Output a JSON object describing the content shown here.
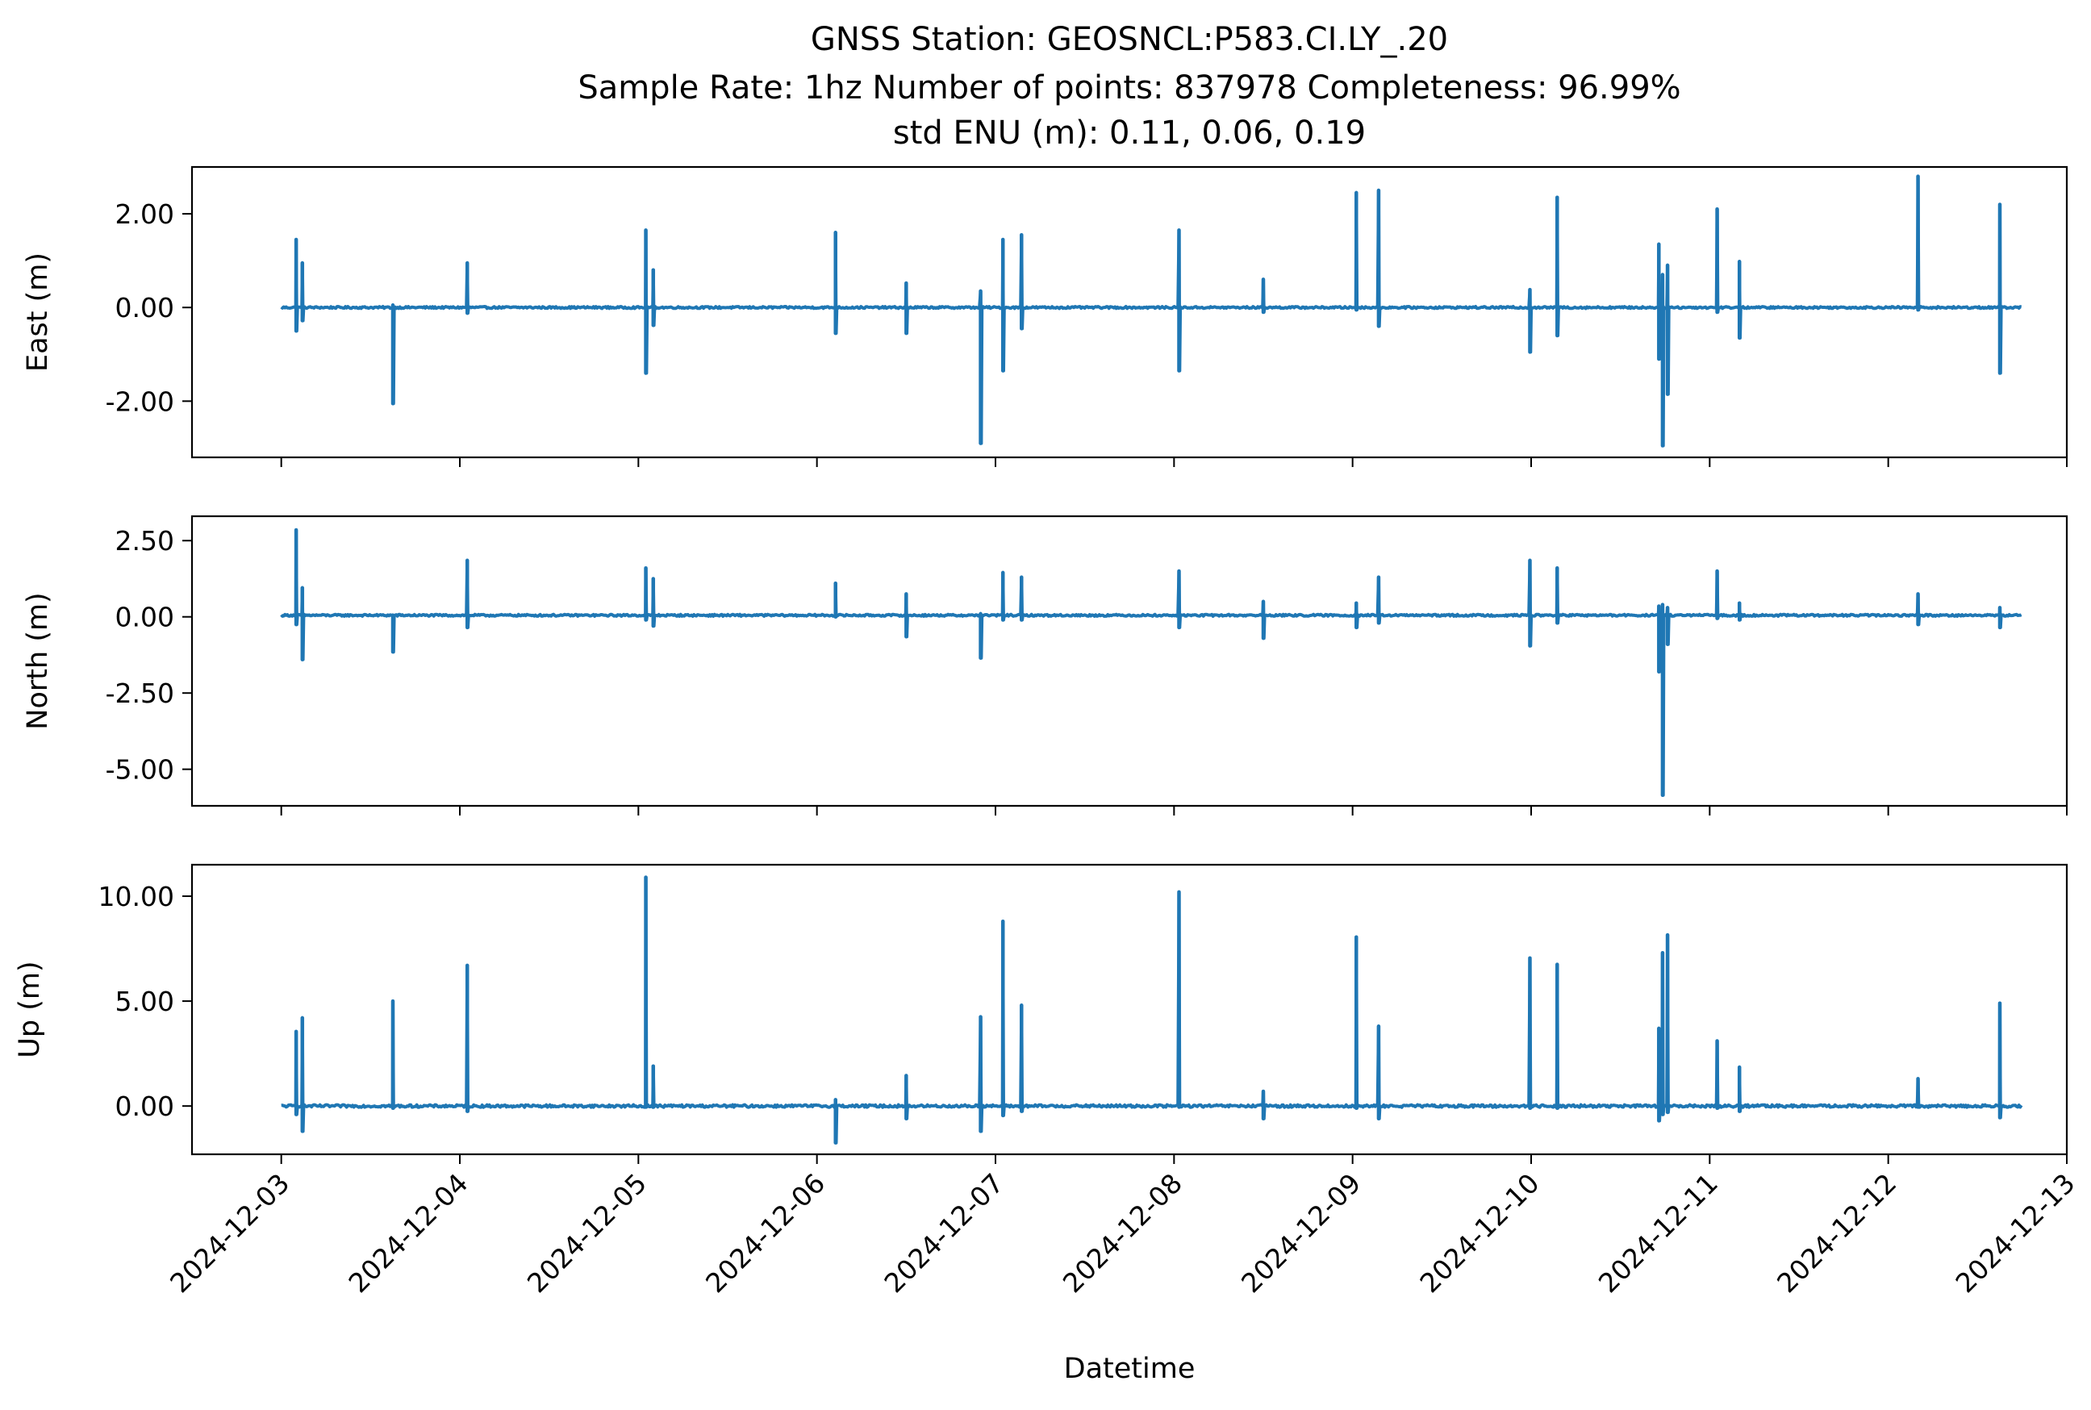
{
  "title": {
    "line1": "GNSS Station: GEOSNCL:P583.CI.LY_.20",
    "line2": "Sample Rate: 1hz   Number of points: 837978    Completeness:  96.99%",
    "line3": "std ENU (m):  0.11, 0.06, 0.19"
  },
  "chart_data": [
    {
      "type": "line",
      "ylabel": "East (m)",
      "xlabel": "",
      "color": "#1f77b4",
      "xlim": [
        "2024-12-02T12:00",
        "2024-12-13T00:00"
      ],
      "ylim": [
        -3.2,
        3.0
      ],
      "yticks": [
        2.0,
        0.0,
        -2.0
      ],
      "yticklabels": [
        "2.00",
        "0.00",
        "-2.00"
      ],
      "xticklabels": [],
      "series": [
        {
          "x_start": "2024-12-03T00:00",
          "x_end": "2024-12-12T18:00",
          "baseline": 0.0,
          "noise": 0.02,
          "spikes": [
            {
              "x": "2024-12-03T02:00",
              "hi": 1.45,
              "lo": -0.5
            },
            {
              "x": "2024-12-03T02:50",
              "hi": 0.95,
              "lo": -0.28
            },
            {
              "x": "2024-12-03T15:00",
              "hi": 0.05,
              "lo": -2.05
            },
            {
              "x": "2024-12-04T01:00",
              "hi": 0.95,
              "lo": -0.12
            },
            {
              "x": "2024-12-05T01:00",
              "hi": 1.65,
              "lo": -1.4
            },
            {
              "x": "2024-12-05T02:00",
              "hi": 0.8,
              "lo": -0.38
            },
            {
              "x": "2024-12-06T02:30",
              "hi": 1.6,
              "lo": -0.55
            },
            {
              "x": "2024-12-06T12:00",
              "hi": 0.52,
              "lo": -0.55
            },
            {
              "x": "2024-12-06T22:00",
              "hi": 0.35,
              "lo": -2.9
            },
            {
              "x": "2024-12-07T01:00",
              "hi": 1.45,
              "lo": -1.35
            },
            {
              "x": "2024-12-07T03:30",
              "hi": 1.55,
              "lo": -0.45
            },
            {
              "x": "2024-12-08T00:40",
              "hi": 1.65,
              "lo": -1.35
            },
            {
              "x": "2024-12-08T12:00",
              "hi": 0.6,
              "lo": -0.1
            },
            {
              "x": "2024-12-09T00:30",
              "hi": 2.45,
              "lo": -0.05
            },
            {
              "x": "2024-12-09T03:30",
              "hi": 2.5,
              "lo": -0.4
            },
            {
              "x": "2024-12-09T23:50",
              "hi": 0.38,
              "lo": -0.95
            },
            {
              "x": "2024-12-10T03:30",
              "hi": 2.35,
              "lo": -0.6
            },
            {
              "x": "2024-12-10T17:10",
              "hi": 1.35,
              "lo": -1.1
            },
            {
              "x": "2024-12-10T17:40",
              "hi": 0.7,
              "lo": -2.95
            },
            {
              "x": "2024-12-10T18:20",
              "hi": 0.9,
              "lo": -1.85
            },
            {
              "x": "2024-12-11T01:00",
              "hi": 2.1,
              "lo": -0.1
            },
            {
              "x": "2024-12-11T04:00",
              "hi": 0.98,
              "lo": -0.65
            },
            {
              "x": "2024-12-12T04:00",
              "hi": 2.8,
              "lo": -0.05
            },
            {
              "x": "2024-12-12T15:00",
              "hi": 2.2,
              "lo": -1.4
            }
          ]
        }
      ]
    },
    {
      "type": "line",
      "ylabel": "North (m)",
      "xlabel": "",
      "color": "#1f77b4",
      "xlim": [
        "2024-12-02T12:00",
        "2024-12-13T00:00"
      ],
      "ylim": [
        -6.2,
        3.3
      ],
      "yticks": [
        2.5,
        0.0,
        -2.5,
        -5.0
      ],
      "yticklabels": [
        "2.50",
        "0.00",
        "-2.50",
        "-5.00"
      ],
      "xticklabels": [],
      "series": [
        {
          "x_start": "2024-12-03T00:00",
          "x_end": "2024-12-12T18:00",
          "baseline": 0.05,
          "noise": 0.03,
          "spikes": [
            {
              "x": "2024-12-03T02:00",
              "hi": 2.85,
              "lo": -0.25
            },
            {
              "x": "2024-12-03T02:50",
              "hi": 0.95,
              "lo": -1.4
            },
            {
              "x": "2024-12-03T15:00",
              "hi": 0.05,
              "lo": -1.15
            },
            {
              "x": "2024-12-04T01:00",
              "hi": 1.85,
              "lo": -0.35
            },
            {
              "x": "2024-12-05T01:00",
              "hi": 1.6,
              "lo": -0.1
            },
            {
              "x": "2024-12-05T02:00",
              "hi": 1.25,
              "lo": -0.3
            },
            {
              "x": "2024-12-06T02:30",
              "hi": 1.1,
              "lo": 0.0
            },
            {
              "x": "2024-12-06T12:00",
              "hi": 0.75,
              "lo": -0.65
            },
            {
              "x": "2024-12-06T22:00",
              "hi": 0.1,
              "lo": -1.35
            },
            {
              "x": "2024-12-07T01:00",
              "hi": 1.45,
              "lo": -0.1
            },
            {
              "x": "2024-12-07T03:30",
              "hi": 1.3,
              "lo": -0.1
            },
            {
              "x": "2024-12-08T00:40",
              "hi": 1.5,
              "lo": -0.35
            },
            {
              "x": "2024-12-08T12:00",
              "hi": 0.5,
              "lo": -0.7
            },
            {
              "x": "2024-12-09T00:30",
              "hi": 0.45,
              "lo": -0.35
            },
            {
              "x": "2024-12-09T03:30",
              "hi": 1.3,
              "lo": -0.2
            },
            {
              "x": "2024-12-09T23:50",
              "hi": 1.85,
              "lo": -0.95
            },
            {
              "x": "2024-12-10T03:30",
              "hi": 1.6,
              "lo": -0.2
            },
            {
              "x": "2024-12-10T17:10",
              "hi": 0.35,
              "lo": -1.8
            },
            {
              "x": "2024-12-10T17:40",
              "hi": 0.4,
              "lo": -5.85
            },
            {
              "x": "2024-12-10T18:20",
              "hi": 0.3,
              "lo": -0.9
            },
            {
              "x": "2024-12-11T01:00",
              "hi": 1.5,
              "lo": -0.05
            },
            {
              "x": "2024-12-11T04:00",
              "hi": 0.45,
              "lo": -0.1
            },
            {
              "x": "2024-12-12T04:00",
              "hi": 0.75,
              "lo": -0.25
            },
            {
              "x": "2024-12-12T15:00",
              "hi": 0.3,
              "lo": -0.35
            }
          ]
        }
      ]
    },
    {
      "type": "line",
      "ylabel": "Up (m)",
      "xlabel": "Datetime",
      "color": "#1f77b4",
      "xlim": [
        "2024-12-02T12:00",
        "2024-12-13T00:00"
      ],
      "ylim": [
        -2.3,
        11.5
      ],
      "yticks": [
        10.0,
        5.0,
        0.0
      ],
      "yticklabels": [
        "10.00",
        "5.00",
        "0.00"
      ],
      "xticklabels": [
        "2024-12-03",
        "2024-12-04",
        "2024-12-05",
        "2024-12-06",
        "2024-12-07",
        "2024-12-08",
        "2024-12-09",
        "2024-12-10",
        "2024-12-11",
        "2024-12-12",
        "2024-12-13"
      ],
      "series": [
        {
          "x_start": "2024-12-03T00:00",
          "x_end": "2024-12-12T18:00",
          "baseline": 0.0,
          "noise": 0.06,
          "spikes": [
            {
              "x": "2024-12-03T02:00",
              "hi": 3.55,
              "lo": -0.4
            },
            {
              "x": "2024-12-03T02:50",
              "hi": 4.2,
              "lo": -1.2
            },
            {
              "x": "2024-12-03T15:00",
              "hi": 5.0,
              "lo": -0.1
            },
            {
              "x": "2024-12-04T01:00",
              "hi": 6.7,
              "lo": -0.25
            },
            {
              "x": "2024-12-05T01:00",
              "hi": 10.9,
              "lo": -0.05
            },
            {
              "x": "2024-12-05T02:00",
              "hi": 1.9,
              "lo": -0.05
            },
            {
              "x": "2024-12-06T02:30",
              "hi": 0.3,
              "lo": -1.75
            },
            {
              "x": "2024-12-06T12:00",
              "hi": 1.45,
              "lo": -0.6
            },
            {
              "x": "2024-12-06T22:00",
              "hi": 4.25,
              "lo": -1.2
            },
            {
              "x": "2024-12-07T01:00",
              "hi": 8.8,
              "lo": -0.45
            },
            {
              "x": "2024-12-07T03:30",
              "hi": 4.8,
              "lo": -0.25
            },
            {
              "x": "2024-12-08T00:40",
              "hi": 10.2,
              "lo": -0.05
            },
            {
              "x": "2024-12-08T12:00",
              "hi": 0.7,
              "lo": -0.6
            },
            {
              "x": "2024-12-09T00:30",
              "hi": 8.05,
              "lo": -0.1
            },
            {
              "x": "2024-12-09T03:30",
              "hi": 3.8,
              "lo": -0.6
            },
            {
              "x": "2024-12-09T23:50",
              "hi": 7.05,
              "lo": -0.1
            },
            {
              "x": "2024-12-10T03:30",
              "hi": 6.75,
              "lo": -0.1
            },
            {
              "x": "2024-12-10T17:10",
              "hi": 3.7,
              "lo": -0.7
            },
            {
              "x": "2024-12-10T17:40",
              "hi": 7.3,
              "lo": -0.4
            },
            {
              "x": "2024-12-10T18:20",
              "hi": 8.15,
              "lo": -0.3
            },
            {
              "x": "2024-12-11T01:00",
              "hi": 3.1,
              "lo": -0.1
            },
            {
              "x": "2024-12-11T04:00",
              "hi": 1.85,
              "lo": -0.25
            },
            {
              "x": "2024-12-12T04:00",
              "hi": 1.3,
              "lo": -0.05
            },
            {
              "x": "2024-12-12T15:00",
              "hi": 4.9,
              "lo": -0.55
            }
          ]
        }
      ]
    }
  ]
}
